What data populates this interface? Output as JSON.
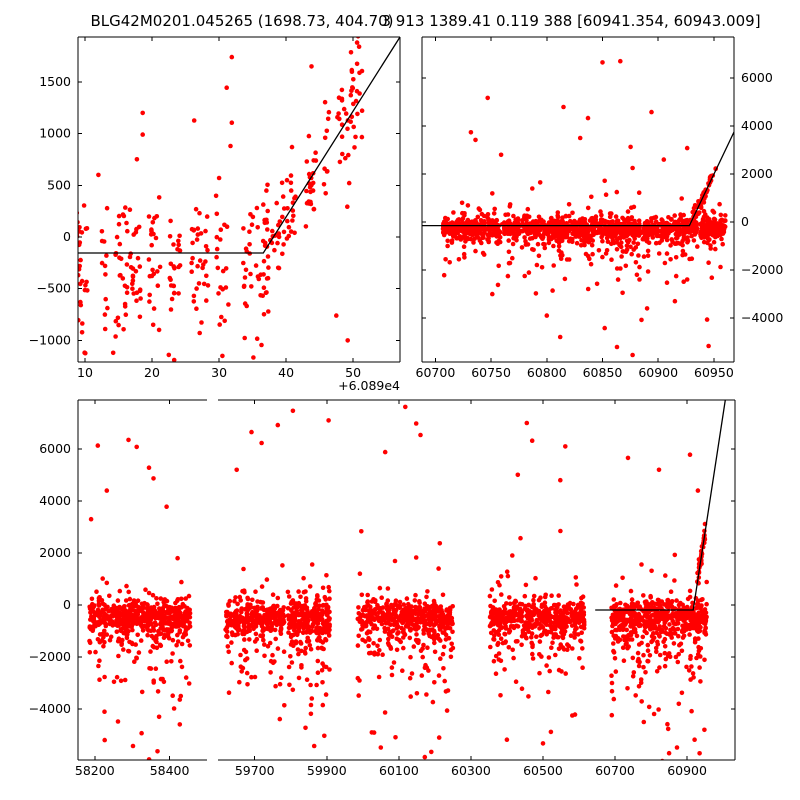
{
  "header": {
    "title_left": "BLG42M0201.045265 (1698.73, 404.70)",
    "title_right": "3 913 1389.41 0.119 388 [60941.354, 60943.009]"
  },
  "colors": {
    "marker": "#ff0000",
    "model_line": "#000000",
    "axis": "#000000",
    "text": "#000000",
    "background": "#ffffff"
  },
  "chart_data": [
    {
      "id": "top_left",
      "type": "scatter",
      "xlim": [
        8.95,
        57
      ],
      "ylim": [
        -1209,
        1934
      ],
      "x_offset_label": "+6.089e4",
      "xticks": {
        "values": [
          10,
          20,
          30,
          40,
          50
        ],
        "labels": [
          "10",
          "20",
          "30",
          "40",
          "50"
        ]
      },
      "yticks": {
        "values": [
          -1000,
          -500,
          0,
          500,
          1000,
          1500
        ],
        "labels": [
          "−1000",
          "−500",
          "0",
          "500",
          "1000",
          "1500"
        ],
        "side": "left"
      },
      "model_line": [
        [
          8.95,
          -155
        ],
        [
          36.6,
          -155
        ],
        [
          57,
          1934
        ]
      ],
      "clusters": [
        {
          "x0": 8.95,
          "x1": 37,
          "n": 255,
          "night_spacing": 1.0,
          "night_keep": 0.72,
          "night_jitter": 0.45,
          "center": -230,
          "sigma": 300,
          "neg_p": 0.3,
          "neg_scale": 380,
          "pos_p": 0.07,
          "pos_scale": 420
        },
        {
          "x0": 37,
          "x1": 52.8,
          "n": 130,
          "night_spacing": 1.0,
          "night_keep": 0.85,
          "night_jitter": 0.45,
          "follow_line": true,
          "sigma": 250
        }
      ],
      "outlier_points": [
        [
          18.6,
          1200
        ],
        [
          18.6,
          990
        ],
        [
          31.9,
          1740
        ],
        [
          31.9,
          1105
        ],
        [
          31.7,
          880
        ],
        [
          22.5,
          -1140
        ],
        [
          14.2,
          -1120
        ],
        [
          30.5,
          -1150
        ],
        [
          50.6,
          1880
        ],
        [
          50.9,
          1840
        ],
        [
          23.3,
          -1190
        ],
        [
          43.8,
          1650
        ],
        [
          12.0,
          600
        ],
        [
          47.5,
          -760
        ],
        [
          49.2,
          -1000
        ]
      ]
    },
    {
      "id": "top_right",
      "type": "scatter",
      "xlim": [
        60688,
        60968
      ],
      "ylim": [
        -5833,
        7708
      ],
      "xticks": {
        "values": [
          60700,
          60750,
          60800,
          60850,
          60900,
          60950
        ],
        "labels": [
          "60700",
          "60750",
          "60800",
          "60850",
          "60900",
          "60950"
        ]
      },
      "yticks": {
        "values": [
          -4000,
          -2000,
          0,
          2000,
          4000,
          6000
        ],
        "labels": [
          "−4000",
          "−2000",
          "0",
          "2000",
          "4000",
          "6000"
        ],
        "side": "right"
      },
      "model_line": [
        [
          60688,
          -150
        ],
        [
          60928,
          -150
        ],
        [
          60968,
          3750
        ]
      ],
      "clusters": [
        {
          "x0": 60706,
          "x1": 60960,
          "n": 1500,
          "night_spacing": 1.0,
          "night_keep": 0.85,
          "night_jitter": 0.25,
          "center": -240,
          "sigma": 210,
          "neg_p": 0.26,
          "neg_scale": 650,
          "pos_p": 0.08,
          "pos_scale": 520
        },
        {
          "x0": 60930,
          "x1": 60952,
          "n": 55,
          "night_spacing": 0.5,
          "night_keep": 0.9,
          "night_jitter": 0.15,
          "follow_line": true,
          "sigma": 160
        }
      ],
      "outlier_points": [
        [
          60850,
          6650
        ],
        [
          60866,
          6700
        ],
        [
          60747,
          5170
        ],
        [
          60815,
          4790
        ],
        [
          60837,
          4330
        ],
        [
          60830,
          3500
        ],
        [
          60894,
          4580
        ],
        [
          60926,
          3080
        ],
        [
          60736,
          3420
        ],
        [
          60852,
          -4420
        ],
        [
          60863,
          -5210
        ],
        [
          60877,
          -5540
        ],
        [
          60812,
          -4790
        ],
        [
          60800,
          -3900
        ],
        [
          60890,
          -3600
        ],
        [
          60915,
          -3300
        ],
        [
          60868,
          -2950
        ],
        [
          60759,
          2800
        ],
        [
          60905,
          2600
        ]
      ]
    },
    {
      "id": "bottom",
      "type": "scatter",
      "ylim": [
        -5960,
        7885
      ],
      "yticks": {
        "values": [
          -4000,
          -2000,
          0,
          2000,
          4000,
          6000
        ],
        "labels": [
          "−4000",
          "−2000",
          "0",
          "2000",
          "4000",
          "6000"
        ],
        "side": "left"
      },
      "panels": [
        {
          "id": "left_segment",
          "xlim": [
            58155,
            58500
          ],
          "xticks": {
            "values": [
              58200,
              58400
            ],
            "labels": [
              "58200",
              "58400"
            ]
          },
          "clusters": [
            {
              "x0": 58185,
              "x1": 58455,
              "n": 620,
              "center": -420,
              "sigma": 310,
              "neg_p": 0.3,
              "neg_scale": 850,
              "pos_p": 0.05,
              "pos_scale": 650
            }
          ],
          "outlier_points": [
            [
              58208,
              6130
            ],
            [
              58290,
              6350
            ],
            [
              58312,
              6080
            ],
            [
              58345,
              5280
            ],
            [
              58357,
              4870
            ],
            [
              58302,
              -5420
            ],
            [
              58325,
              -4930
            ],
            [
              58262,
              -4480
            ],
            [
              58372,
              -4300
            ],
            [
              58232,
              4400
            ],
            [
              58392,
              3780
            ],
            [
              58412,
              -3980
            ],
            [
              58190,
              3300
            ],
            [
              58430,
              -3500
            ]
          ]
        },
        {
          "id": "right_segment",
          "xlim": [
            59598,
            61033
          ],
          "xticks": {
            "values": [
              59700,
              59900,
              60100,
              60300,
              60500,
              60700,
              60900
            ],
            "labels": [
              "59700",
              "59900",
              "60100",
              "60300",
              "60500",
              "60700",
              "60900"
            ]
          },
          "model_line": [
            [
              60645,
              -190
            ],
            [
              60917,
              -190
            ],
            [
              61006,
              7885
            ]
          ],
          "clusters": [
            {
              "x0": 59618,
              "x1": 59782,
              "n": 330,
              "center": -450,
              "sigma": 320,
              "neg_p": 0.32,
              "neg_scale": 950,
              "pos_p": 0.05,
              "pos_scale": 700
            },
            {
              "x0": 59792,
              "x1": 59908,
              "n": 300,
              "center": -480,
              "sigma": 330,
              "neg_p": 0.34,
              "neg_scale": 1000,
              "pos_p": 0.05,
              "pos_scale": 750
            },
            {
              "x0": 59985,
              "x1": 60250,
              "n": 520,
              "center": -470,
              "sigma": 330,
              "neg_p": 0.34,
              "neg_scale": 1050,
              "pos_p": 0.06,
              "pos_scale": 800
            },
            {
              "x0": 60352,
              "x1": 60615,
              "n": 520,
              "center": -450,
              "sigma": 320,
              "neg_p": 0.32,
              "neg_scale": 1000,
              "pos_p": 0.06,
              "pos_scale": 800
            },
            {
              "x0": 60690,
              "x1": 60955,
              "n": 620,
              "center": -420,
              "sigma": 300,
              "neg_p": 0.34,
              "neg_scale": 1050,
              "pos_p": 0.05,
              "pos_scale": 700
            },
            {
              "x0": 60930,
              "x1": 60950,
              "n": 45,
              "follow_line": true,
              "sigma": 160
            }
          ],
          "outlier_points": [
            [
              59691,
              6650
            ],
            [
              59764,
              6920
            ],
            [
              59719,
              6230
            ],
            [
              59806,
              7470
            ],
            [
              59905,
              7100
            ],
            [
              59865,
              -5420
            ],
            [
              59893,
              -5030
            ],
            [
              59841,
              -4720
            ],
            [
              59650,
              5200
            ],
            [
              60148,
              6980
            ],
            [
              60160,
              6540
            ],
            [
              60062,
              5880
            ],
            [
              60118,
              7620
            ],
            [
              60190,
              -5650
            ],
            [
              60212,
              -5100
            ],
            [
              60172,
              -5850
            ],
            [
              60050,
              -5480
            ],
            [
              60455,
              7000
            ],
            [
              60470,
              6320
            ],
            [
              60430,
              5010
            ],
            [
              60548,
              4800
            ],
            [
              60500,
              -5320
            ],
            [
              60522,
              -4880
            ],
            [
              60562,
              6100
            ],
            [
              60400,
              -5180
            ],
            [
              60736,
              5660
            ],
            [
              60822,
              5200
            ],
            [
              60908,
              5780
            ],
            [
              60930,
              4400
            ],
            [
              60872,
              -5480
            ],
            [
              60921,
              -5180
            ],
            [
              60948,
              -4800
            ],
            [
              60780,
              -4500
            ],
            [
              60850,
              -5700
            ]
          ]
        }
      ]
    }
  ]
}
